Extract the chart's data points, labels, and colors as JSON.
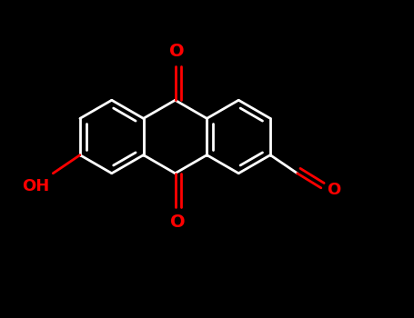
{
  "background": "#000000",
  "bond_color": "#ffffff",
  "atom_color": "#ff0000",
  "bond_lw": 2.0,
  "font_size": 13,
  "figsize": [
    4.55,
    3.5
  ],
  "dpi": 100,
  "b": 0.115,
  "mcx": 0.38,
  "mcy": 0.56,
  "xlim": [
    0,
    1
  ],
  "ylim": [
    0,
    1
  ]
}
